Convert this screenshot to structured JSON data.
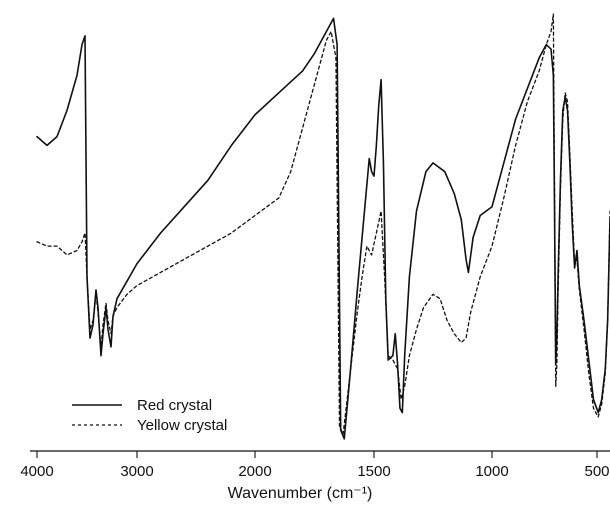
{
  "chart_data": {
    "type": "line",
    "xlabel": "Wavenumber",
    "xlabel_unit": "(cm⁻¹)",
    "xlim": [
      4000,
      500
    ],
    "x_reversed": true,
    "x_tick_labels": [
      "4000",
      "3000",
      "2000",
      "1500",
      "1000",
      "500"
    ],
    "x_tick_values": [
      4000,
      3000,
      2000,
      1500,
      1000,
      500
    ],
    "x_tick_note": "Tick labels printed as on the original axis (non-linear spacing, expanded below 2000 cm⁻¹).",
    "y_axis_shown": false,
    "grid": false,
    "legend_position": "bottom-left",
    "series": [
      {
        "name": "Red crystal",
        "line_style": "solid",
        "color": "#111111",
        "points": [
          [
            4000,
            0.72
          ],
          [
            3900,
            0.7
          ],
          [
            3800,
            0.72
          ],
          [
            3700,
            0.78
          ],
          [
            3600,
            0.86
          ],
          [
            3550,
            0.93
          ],
          [
            3520,
            0.95
          ],
          [
            3500,
            0.4
          ],
          [
            3470,
            0.26
          ],
          [
            3440,
            0.29
          ],
          [
            3410,
            0.37
          ],
          [
            3390,
            0.33
          ],
          [
            3360,
            0.22
          ],
          [
            3340,
            0.27
          ],
          [
            3310,
            0.33
          ],
          [
            3290,
            0.28
          ],
          [
            3260,
            0.24
          ],
          [
            3240,
            0.31
          ],
          [
            3200,
            0.35
          ],
          [
            3100,
            0.39
          ],
          [
            3000,
            0.43
          ],
          [
            2800,
            0.5
          ],
          [
            2600,
            0.56
          ],
          [
            2400,
            0.62
          ],
          [
            2200,
            0.7
          ],
          [
            2000,
            0.77
          ],
          [
            1900,
            0.82
          ],
          [
            1800,
            0.87
          ],
          [
            1750,
            0.91
          ],
          [
            1700,
            0.96
          ],
          [
            1690,
            0.97
          ],
          [
            1670,
            0.99
          ],
          [
            1655,
            0.93
          ],
          [
            1640,
            0.05
          ],
          [
            1625,
            0.03
          ],
          [
            1600,
            0.18
          ],
          [
            1570,
            0.37
          ],
          [
            1540,
            0.55
          ],
          [
            1520,
            0.67
          ],
          [
            1510,
            0.64
          ],
          [
            1500,
            0.63
          ],
          [
            1490,
            0.7
          ],
          [
            1480,
            0.79
          ],
          [
            1470,
            0.85
          ],
          [
            1460,
            0.66
          ],
          [
            1450,
            0.35
          ],
          [
            1440,
            0.21
          ],
          [
            1420,
            0.22
          ],
          [
            1410,
            0.27
          ],
          [
            1400,
            0.2
          ],
          [
            1390,
            0.1
          ],
          [
            1380,
            0.09
          ],
          [
            1370,
            0.22
          ],
          [
            1350,
            0.4
          ],
          [
            1320,
            0.55
          ],
          [
            1280,
            0.64
          ],
          [
            1250,
            0.66
          ],
          [
            1200,
            0.64
          ],
          [
            1160,
            0.59
          ],
          [
            1130,
            0.53
          ],
          [
            1110,
            0.44
          ],
          [
            1100,
            0.41
          ],
          [
            1080,
            0.49
          ],
          [
            1050,
            0.54
          ],
          [
            1000,
            0.56
          ],
          [
            950,
            0.66
          ],
          [
            900,
            0.76
          ],
          [
            850,
            0.83
          ],
          [
            800,
            0.9
          ],
          [
            770,
            0.93
          ],
          [
            750,
            0.92
          ],
          [
            740,
            0.86
          ],
          [
            735,
            0.55
          ],
          [
            730,
            0.2
          ],
          [
            725,
            0.27
          ],
          [
            720,
            0.4
          ],
          [
            710,
            0.62
          ],
          [
            700,
            0.78
          ],
          [
            690,
            0.81
          ],
          [
            680,
            0.78
          ],
          [
            670,
            0.66
          ],
          [
            660,
            0.52
          ],
          [
            650,
            0.42
          ],
          [
            640,
            0.46
          ],
          [
            630,
            0.38
          ],
          [
            610,
            0.3
          ],
          [
            590,
            0.21
          ],
          [
            570,
            0.12
          ],
          [
            550,
            0.09
          ],
          [
            535,
            0.12
          ],
          [
            520,
            0.19
          ],
          [
            510,
            0.3
          ],
          [
            500,
            0.53
          ]
        ]
      },
      {
        "name": "Yellow crystal",
        "line_style": "dashed",
        "color": "#111111",
        "points": [
          [
            4000,
            0.48
          ],
          [
            3900,
            0.47
          ],
          [
            3800,
            0.47
          ],
          [
            3700,
            0.45
          ],
          [
            3600,
            0.46
          ],
          [
            3550,
            0.48
          ],
          [
            3520,
            0.5
          ],
          [
            3500,
            0.4
          ],
          [
            3470,
            0.28
          ],
          [
            3440,
            0.3
          ],
          [
            3410,
            0.36
          ],
          [
            3390,
            0.32
          ],
          [
            3360,
            0.24
          ],
          [
            3340,
            0.29
          ],
          [
            3310,
            0.34
          ],
          [
            3290,
            0.3
          ],
          [
            3260,
            0.27
          ],
          [
            3240,
            0.31
          ],
          [
            3200,
            0.33
          ],
          [
            3100,
            0.36
          ],
          [
            3000,
            0.38
          ],
          [
            2800,
            0.41
          ],
          [
            2600,
            0.44
          ],
          [
            2400,
            0.47
          ],
          [
            2200,
            0.5
          ],
          [
            2000,
            0.54
          ],
          [
            1900,
            0.58
          ],
          [
            1850,
            0.64
          ],
          [
            1800,
            0.74
          ],
          [
            1760,
            0.82
          ],
          [
            1720,
            0.9
          ],
          [
            1700,
            0.94
          ],
          [
            1680,
            0.96
          ],
          [
            1660,
            0.9
          ],
          [
            1645,
            0.06
          ],
          [
            1630,
            0.04
          ],
          [
            1600,
            0.18
          ],
          [
            1570,
            0.32
          ],
          [
            1550,
            0.4
          ],
          [
            1530,
            0.47
          ],
          [
            1510,
            0.45
          ],
          [
            1490,
            0.5
          ],
          [
            1470,
            0.55
          ],
          [
            1455,
            0.4
          ],
          [
            1440,
            0.22
          ],
          [
            1420,
            0.21
          ],
          [
            1400,
            0.19
          ],
          [
            1385,
            0.12
          ],
          [
            1370,
            0.15
          ],
          [
            1350,
            0.22
          ],
          [
            1320,
            0.28
          ],
          [
            1290,
            0.33
          ],
          [
            1250,
            0.36
          ],
          [
            1220,
            0.35
          ],
          [
            1190,
            0.3
          ],
          [
            1160,
            0.27
          ],
          [
            1130,
            0.25
          ],
          [
            1110,
            0.26
          ],
          [
            1090,
            0.32
          ],
          [
            1050,
            0.4
          ],
          [
            1000,
            0.47
          ],
          [
            950,
            0.58
          ],
          [
            900,
            0.7
          ],
          [
            850,
            0.8
          ],
          [
            800,
            0.87
          ],
          [
            770,
            0.93
          ],
          [
            750,
            0.96
          ],
          [
            740,
            1.0
          ],
          [
            735,
            0.6
          ],
          [
            730,
            0.15
          ],
          [
            725,
            0.2
          ],
          [
            720,
            0.36
          ],
          [
            710,
            0.6
          ],
          [
            700,
            0.76
          ],
          [
            690,
            0.82
          ],
          [
            680,
            0.8
          ],
          [
            670,
            0.68
          ],
          [
            660,
            0.55
          ],
          [
            650,
            0.43
          ],
          [
            640,
            0.44
          ],
          [
            630,
            0.37
          ],
          [
            610,
            0.28
          ],
          [
            590,
            0.18
          ],
          [
            570,
            0.1
          ],
          [
            550,
            0.08
          ],
          [
            535,
            0.11
          ],
          [
            520,
            0.18
          ],
          [
            510,
            0.3
          ],
          [
            500,
            0.55
          ]
        ]
      }
    ]
  }
}
